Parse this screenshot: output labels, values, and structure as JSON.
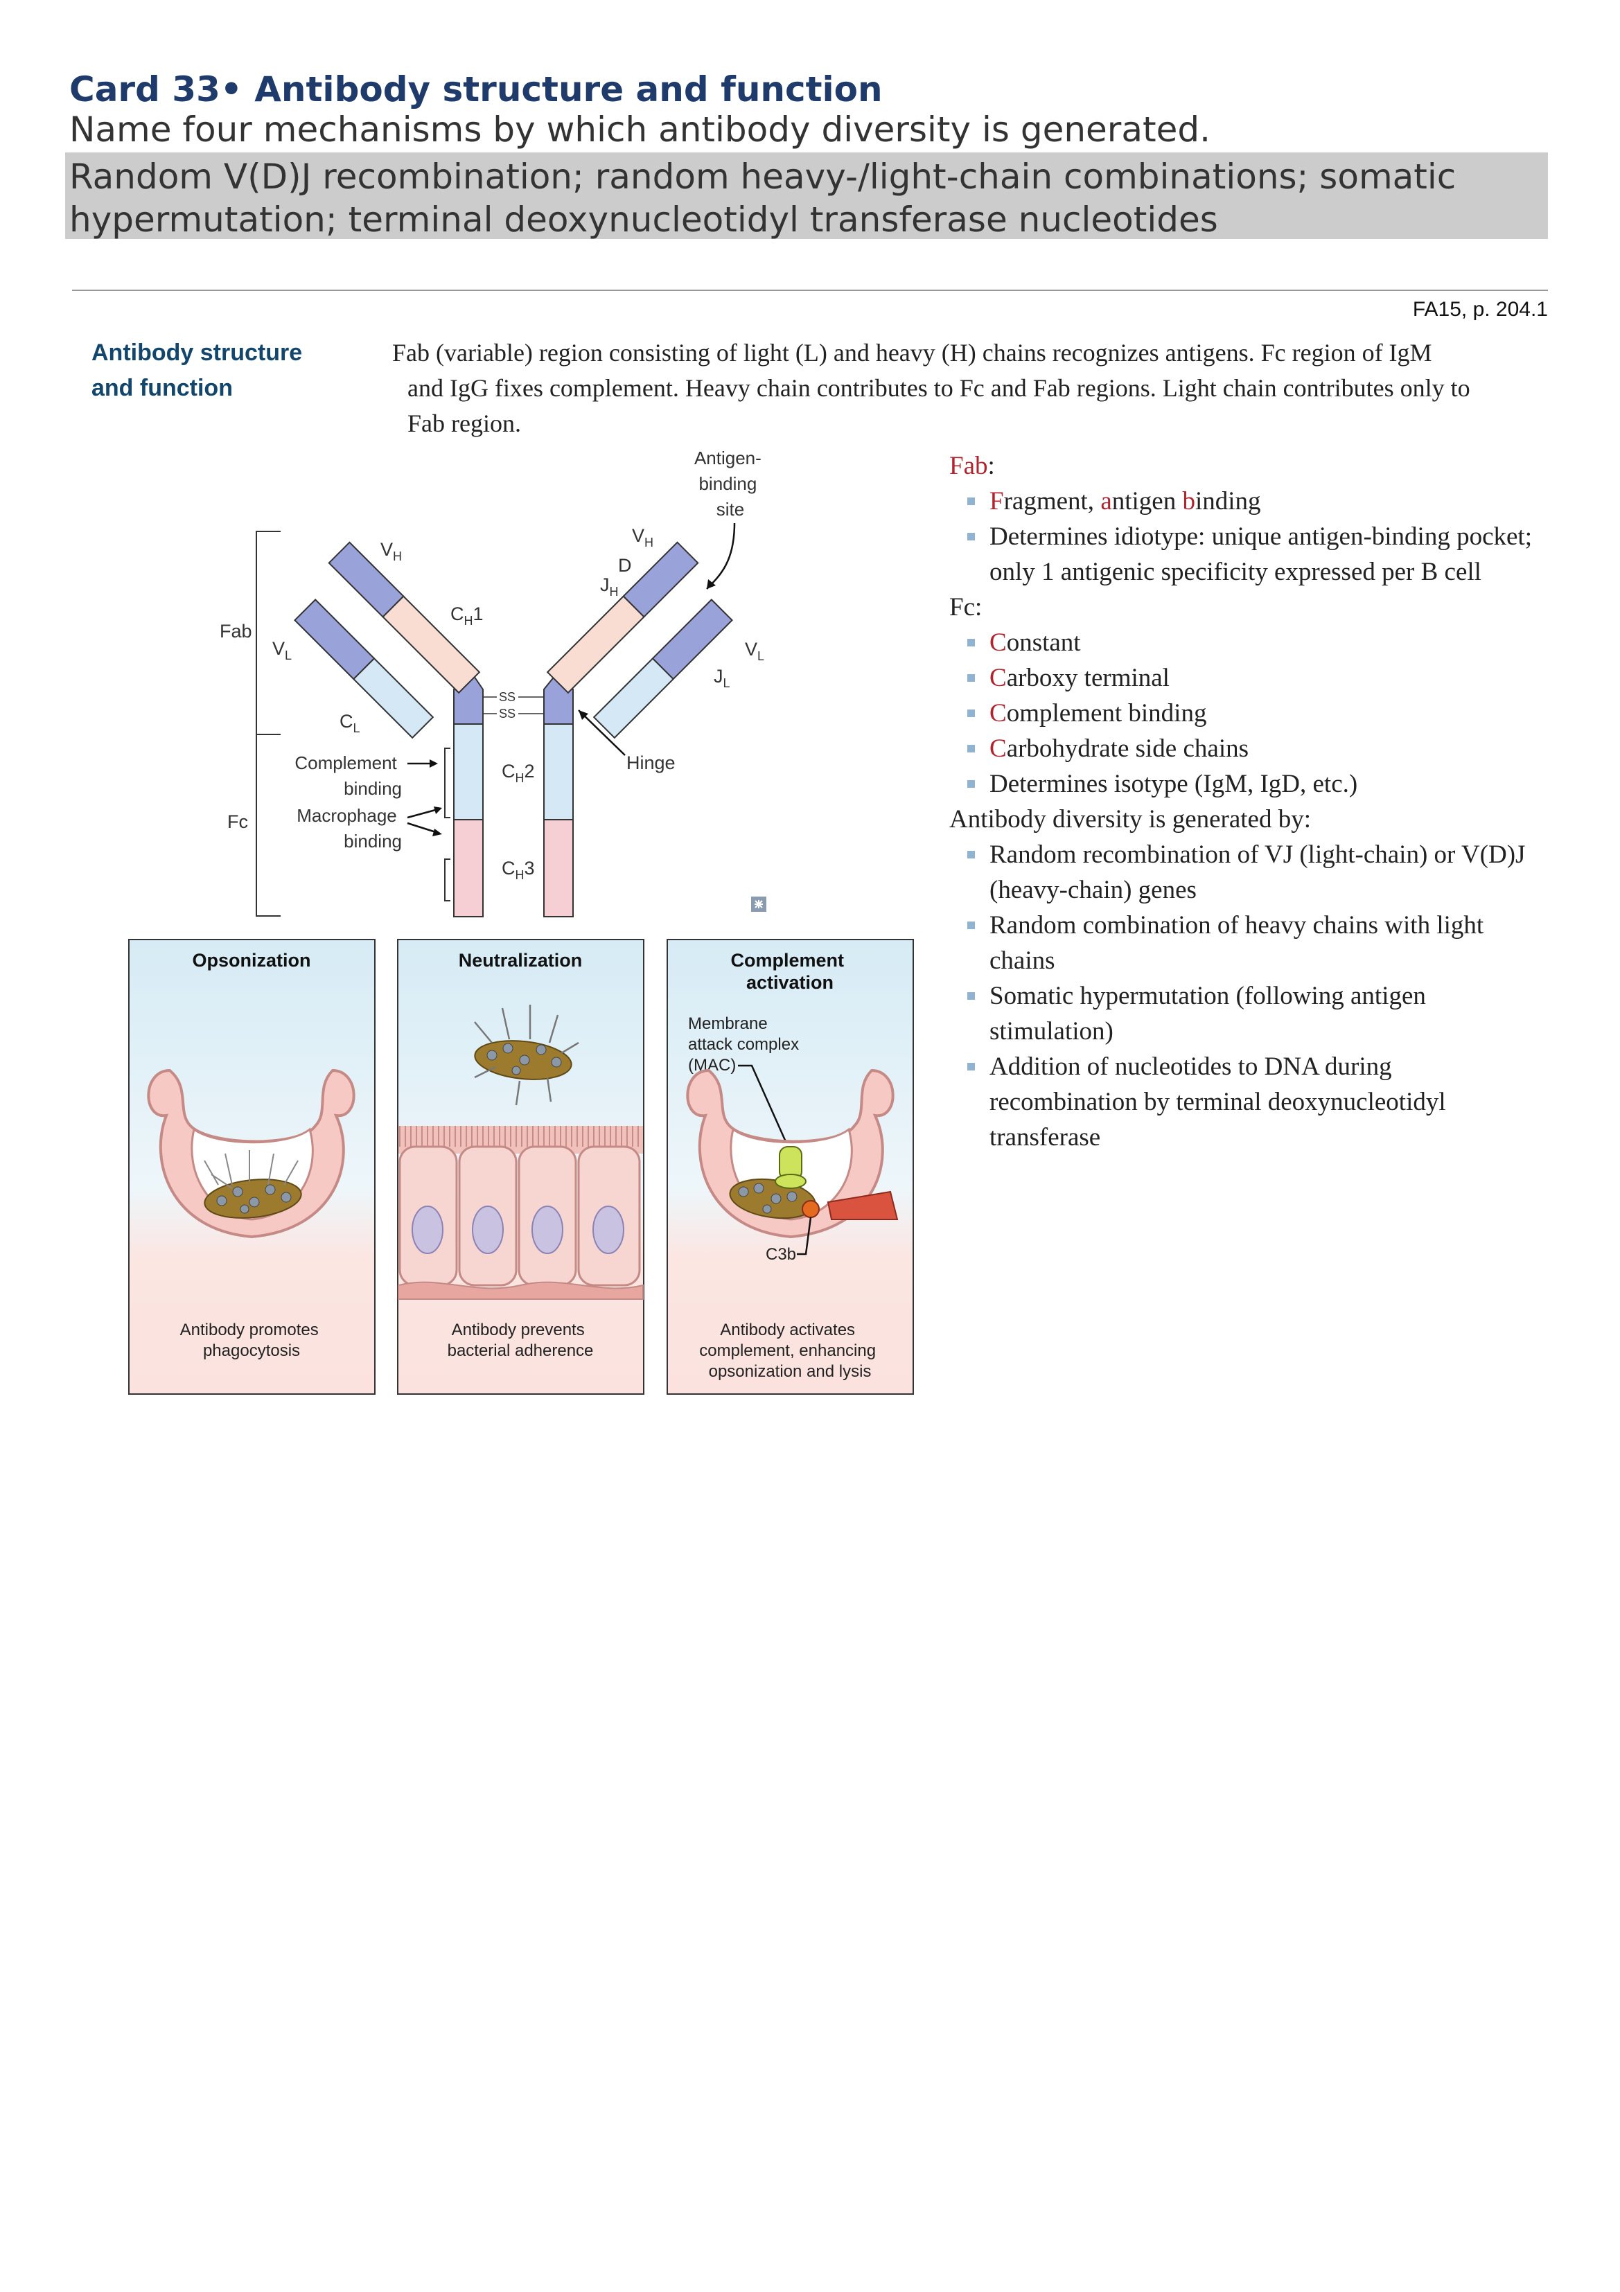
{
  "card": {
    "title": "Card 33• Antibody structure and function",
    "question": "Name four mechanisms by which antibody diversity is generated.",
    "answer": "Random V(D)J recombination; random heavy-/light-chain combinations; somatic hypermutation; terminal deoxynucleotidyl transferase nucleotides"
  },
  "page": {
    "reference": "FA15, p. 204.1",
    "section_title": "Antibody structure and function",
    "intro": "Fab (variable) region consisting of light (L) and heavy (H) chains recognizes antigens. Fc region of IgM and IgG fixes complement. Heavy chain contributes to Fc and Fab regions. Light chain contributes only to Fab region."
  },
  "diagram": {
    "labels": {
      "fab": "Fab",
      "fc": "Fc",
      "vh": "V",
      "vl": "V",
      "ch1": "C",
      "cl": "C",
      "ch2": "C",
      "ch3": "C",
      "jh": "J",
      "jl": "J",
      "d": "D",
      "ss": "SS",
      "hinge": "Hinge",
      "antigen_binding_site": [
        "Antigen-",
        "binding",
        "site"
      ],
      "complement_binding": [
        "Complement",
        "binding"
      ],
      "macrophage_binding": [
        "Macrophage",
        "binding"
      ]
    },
    "subscripts": {
      "h": "H",
      "l": "L",
      "one": "1",
      "two": "2",
      "three": "3"
    },
    "panels": [
      {
        "title": [
          "Opsonization"
        ],
        "caption": [
          "Antibody promotes",
          "phagocytosis"
        ]
      },
      {
        "title": [
          "Neutralization"
        ],
        "caption": [
          "Antibody prevents",
          "bacterial adherence"
        ]
      },
      {
        "title": [
          "Complement",
          "activation"
        ],
        "caption": [
          "Antibody activates",
          "complement, enhancing",
          "opsonization and lysis"
        ]
      }
    ],
    "mac_label": [
      "Membrane",
      "attack complex",
      "(MAC)"
    ],
    "c3b_label": "C3b"
  },
  "notes": {
    "fab_head": [
      "Fab",
      ":"
    ],
    "fab_items": [
      [
        "F",
        "ragment, ",
        "a",
        "ntigen ",
        "b",
        "inding"
      ],
      "Determines idiotype: unique antigen-binding pocket; only 1 antigenic specificity expressed per B cell"
    ],
    "fc_head": [
      "Fc",
      ":"
    ],
    "fc_items": [
      [
        "C",
        "onstant"
      ],
      [
        "C",
        "arboxy terminal"
      ],
      [
        "C",
        "omplement binding"
      ],
      [
        "C",
        "arbohydrate side chains"
      ],
      "Determines isotype (IgM, IgD, etc.)"
    ],
    "diversity_head": "Antibody diversity is generated by:",
    "diversity_items": [
      "Random recombination of VJ (light-chain) or V(D)J (heavy-chain) genes",
      "Random combination of heavy chains with light chains",
      "Somatic hypermutation (following antigen stimulation)",
      "Addition of nucleotides to DNA during recombination by terminal deoxynucleotidyl transferase"
    ]
  },
  "colors": {
    "title": "#1f3b6b",
    "section_title": "#12466d",
    "red_emphasis": "#b0242d",
    "answer_bg": "#cccccc",
    "variable_domain": "#9aa3d9",
    "ch1_domain": "#f9ddd2",
    "light_constant": "#d5e8f6",
    "ch2_domain": "#d5e8f6",
    "ch3_domain": "#f6cfd4",
    "panel_top": "#d9ecf5",
    "panel_bottom": "#fbe3df",
    "bullet": "#8fb3d1"
  }
}
